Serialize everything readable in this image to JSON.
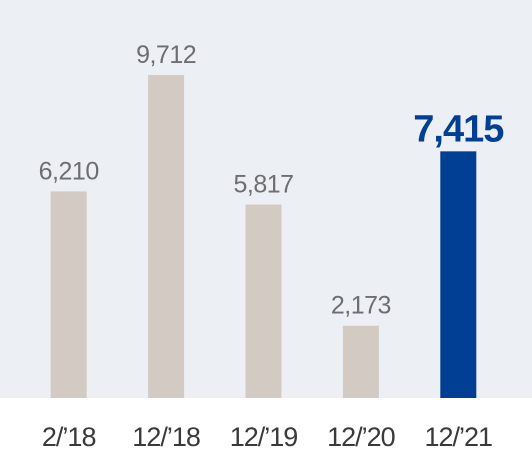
{
  "chart_data": {
    "type": "bar",
    "categories": [
      "2/’18",
      "12/’18",
      "12/’19",
      "12/’20",
      "12/’21"
    ],
    "values": [
      6210,
      9712,
      5817,
      2173,
      7415
    ],
    "value_labels": [
      "6,210",
      "9,712",
      "5,817",
      "2,173",
      "7,415"
    ],
    "colors": [
      "#d3cbc3",
      "#d3cbc3",
      "#d3cbc3",
      "#d3cbc3",
      "#003f93"
    ],
    "highlight_index": 4
  }
}
